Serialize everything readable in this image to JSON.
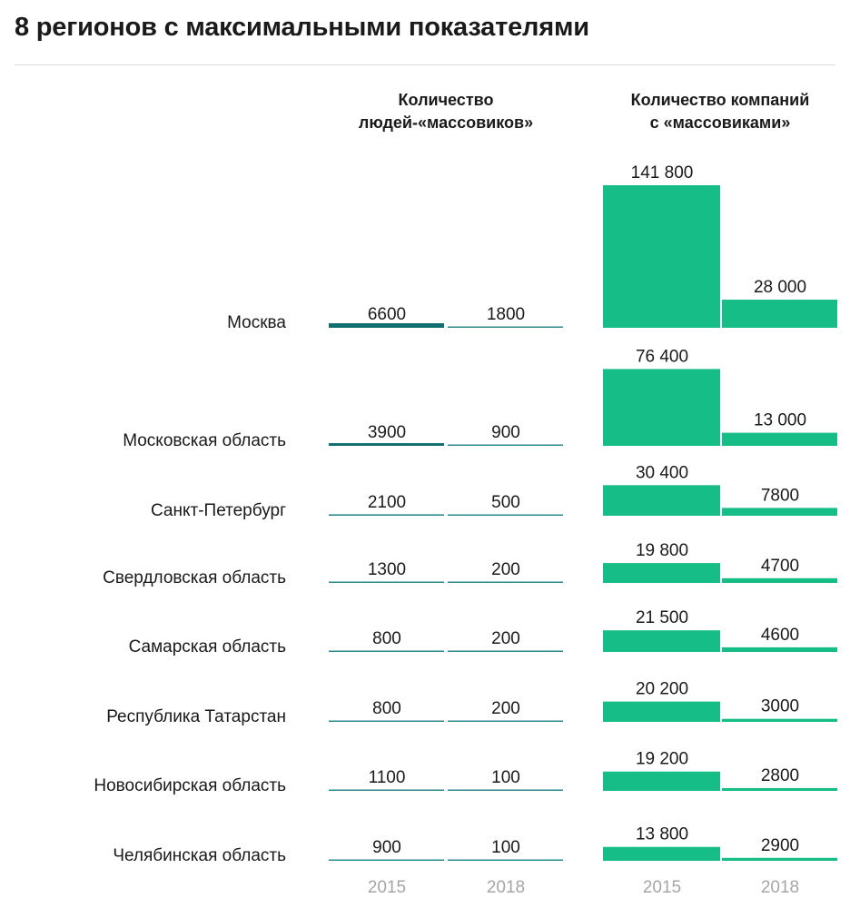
{
  "title": "8 регионов с максимальными показателями",
  "chart_data": {
    "type": "bar",
    "categories": [
      "Москва",
      "Московская область",
      "Санкт-Петербург",
      "Свердловская область",
      "Самарская область",
      "Республика Татарстан",
      "Новосибирская область",
      "Челябинская область"
    ],
    "panels": [
      {
        "title_lines": [
          "Количество",
          "людей-«массовиков»"
        ],
        "years": [
          "2015",
          "2018"
        ],
        "series": [
          {
            "year": "2015",
            "values": [
              6600,
              3900,
              2100,
              1300,
              800,
              800,
              1100,
              900
            ],
            "labels": [
              "6600",
              "3900",
              "2100",
              "1300",
              "800",
              "800",
              "1100",
              "900"
            ]
          },
          {
            "year": "2018",
            "values": [
              1800,
              900,
              500,
              200,
              200,
              200,
              100,
              100
            ],
            "labels": [
              "1800",
              "900",
              "500",
              "200",
              "200",
              "200",
              "100",
              "100"
            ]
          }
        ],
        "color": "#0e6e70"
      },
      {
        "title_lines": [
          "Количество компаний",
          "с «массовиками»"
        ],
        "years": [
          "2015",
          "2018"
        ],
        "series": [
          {
            "year": "2015",
            "values": [
              141800,
              76400,
              30400,
              19800,
              21500,
              20200,
              19200,
              13800
            ],
            "labels": [
              "141 800",
              "76 400",
              "30 400",
              "19 800",
              "21 500",
              "20 200",
              "19 200",
              "13 800"
            ]
          },
          {
            "year": "2018",
            "values": [
              28000,
              13000,
              7800,
              4700,
              4600,
              3000,
              2800,
              2900
            ],
            "labels": [
              "28 000",
              "13 000",
              "7800",
              "4700",
              "4600",
              "3000",
              "2800",
              "2900"
            ]
          }
        ],
        "color": "#16bd86"
      }
    ]
  }
}
